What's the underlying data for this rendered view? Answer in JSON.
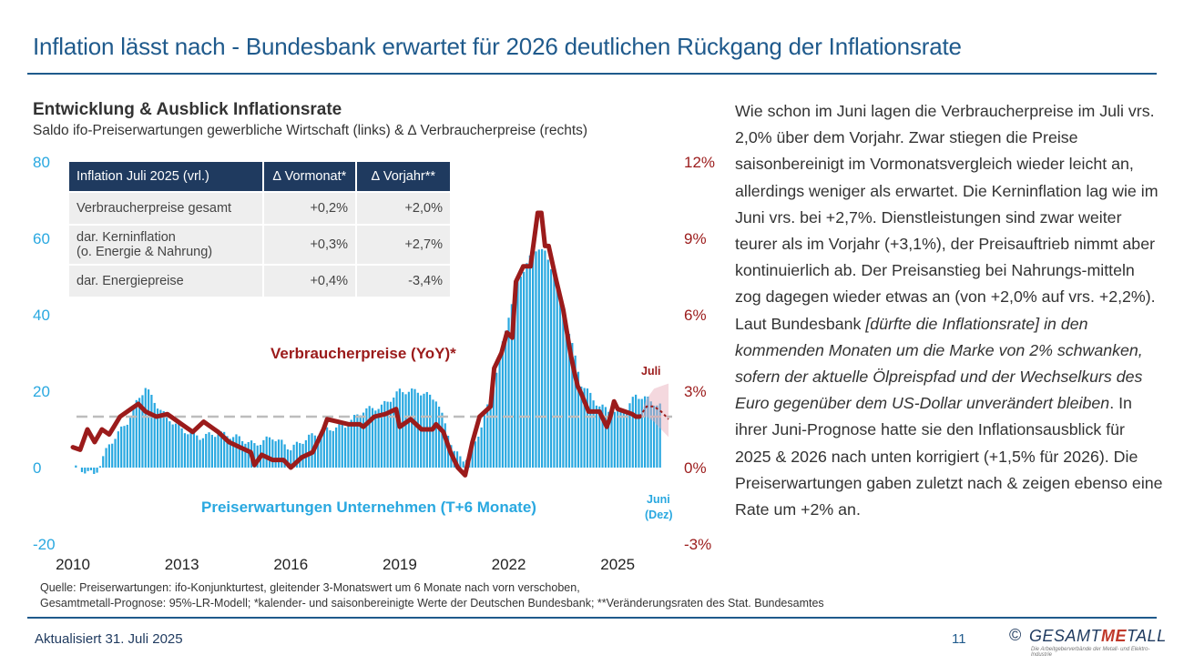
{
  "header": {
    "title": "Inflation lässt nach - Bundesbank erwartet für 2026 deutlichen Rückgang der Inflationsrate"
  },
  "chart_heading": {
    "title": "Entwicklung & Ausblick Inflationsrate",
    "subtitle": "Saldo ifo-Preiserwartungen gewerbliche Wirtschaft (links) & ∆ Verbraucherpreise (rechts)"
  },
  "table": {
    "headers": [
      "Inflation Juli 2025 (vrl.)",
      "∆ Vormonat*",
      "∆ Vorjahr**"
    ],
    "rows": [
      {
        "label": "Verbraucherpreise gesamt",
        "label2": "",
        "mom": "+0,2%",
        "yoy": "+2,0%"
      },
      {
        "label": "dar. Kerninflation",
        "label2": "(o. Energie & Nahrung)",
        "mom": "+0,3%",
        "yoy": "+2,7%"
      },
      {
        "label": "dar. Energiepreise",
        "label2": "",
        "mom": "+0,4%",
        "yoy": "-3,4%"
      }
    ]
  },
  "chart_data": {
    "type": "bar+line",
    "x_ticks": [
      "2010",
      "2013",
      "2016",
      "2019",
      "2022",
      "2025"
    ],
    "x_range": [
      2010,
      2026.5
    ],
    "y_left": {
      "label": "Saldo ifo-Preiserwartungen",
      "range": [
        -20,
        80
      ],
      "ticks": [
        "-20",
        "0",
        "20",
        "40",
        "60",
        "80"
      ]
    },
    "y_right": {
      "label": "∆ Verbraucherpreise",
      "range": [
        -3,
        12
      ],
      "ticks": [
        "-3%",
        "0%",
        "3%",
        "6%",
        "9%",
        "12%"
      ]
    },
    "reference_line": {
      "axis": "right",
      "value": 2.0,
      "style": "dashed"
    },
    "annotations": {
      "cpi_label": "Verbraucherpreise (YoY)*",
      "pe_label": "Preiserwartungen Unternehmen (T+6 Monate)",
      "cpi_end": "Juli",
      "pe_end_1": "Juni",
      "pe_end_2": "(Dez)"
    },
    "series": [
      {
        "name": "Preiserwartungen Unternehmen (T+6 Monate)",
        "axis": "left",
        "kind": "bar",
        "color": "#29a8e0",
        "points": [
          [
            2010.0,
            0
          ],
          [
            2010.4,
            -1
          ],
          [
            2010.6,
            -2
          ],
          [
            2011.0,
            6
          ],
          [
            2011.5,
            12
          ],
          [
            2011.8,
            18
          ],
          [
            2012.0,
            21
          ],
          [
            2012.2,
            18
          ],
          [
            2012.5,
            14
          ],
          [
            2013.0,
            10
          ],
          [
            2013.5,
            8
          ],
          [
            2014.0,
            9
          ],
          [
            2014.5,
            8
          ],
          [
            2015.0,
            6
          ],
          [
            2015.5,
            8
          ],
          [
            2016.0,
            5
          ],
          [
            2016.5,
            8
          ],
          [
            2017.0,
            10
          ],
          [
            2017.5,
            11
          ],
          [
            2018.0,
            15
          ],
          [
            2018.5,
            16
          ],
          [
            2019.0,
            20
          ],
          [
            2019.5,
            20
          ],
          [
            2020.0,
            18
          ],
          [
            2020.3,
            10
          ],
          [
            2020.5,
            4
          ],
          [
            2020.8,
            2
          ],
          [
            2021.0,
            5
          ],
          [
            2021.3,
            12
          ],
          [
            2021.6,
            22
          ],
          [
            2022.0,
            40
          ],
          [
            2022.3,
            50
          ],
          [
            2022.6,
            55
          ],
          [
            2022.8,
            58
          ],
          [
            2023.0,
            56
          ],
          [
            2023.3,
            50
          ],
          [
            2023.6,
            38
          ],
          [
            2024.0,
            22
          ],
          [
            2024.5,
            16
          ],
          [
            2024.8,
            15
          ],
          [
            2025.0,
            14
          ],
          [
            2025.3,
            16
          ],
          [
            2025.5,
            19
          ],
          [
            2025.8,
            18
          ],
          [
            2026.0,
            17
          ],
          [
            2026.2,
            16
          ]
        ]
      },
      {
        "name": "Verbraucherpreise (YoY)*",
        "axis": "right",
        "kind": "line",
        "color": "#9b1b1b",
        "points": [
          [
            2010.0,
            0.8
          ],
          [
            2010.2,
            0.7
          ],
          [
            2010.4,
            1.5
          ],
          [
            2010.6,
            1.0
          ],
          [
            2010.8,
            1.5
          ],
          [
            2011.0,
            1.3
          ],
          [
            2011.3,
            2.0
          ],
          [
            2011.6,
            2.3
          ],
          [
            2011.8,
            2.5
          ],
          [
            2012.0,
            2.2
          ],
          [
            2012.3,
            2.0
          ],
          [
            2012.6,
            2.1
          ],
          [
            2012.9,
            1.8
          ],
          [
            2013.0,
            1.7
          ],
          [
            2013.3,
            1.4
          ],
          [
            2013.6,
            1.8
          ],
          [
            2013.9,
            1.5
          ],
          [
            2014.0,
            1.4
          ],
          [
            2014.3,
            1.0
          ],
          [
            2014.6,
            0.8
          ],
          [
            2014.9,
            0.6
          ],
          [
            2015.0,
            0.1
          ],
          [
            2015.2,
            0.5
          ],
          [
            2015.5,
            0.3
          ],
          [
            2015.8,
            0.3
          ],
          [
            2016.0,
            0.0
          ],
          [
            2016.3,
            0.4
          ],
          [
            2016.6,
            0.6
          ],
          [
            2016.9,
            1.5
          ],
          [
            2017.0,
            1.9
          ],
          [
            2017.3,
            1.8
          ],
          [
            2017.6,
            1.7
          ],
          [
            2017.9,
            1.7
          ],
          [
            2018.0,
            1.6
          ],
          [
            2018.3,
            2.0
          ],
          [
            2018.6,
            2.1
          ],
          [
            2018.9,
            2.3
          ],
          [
            2019.0,
            1.6
          ],
          [
            2019.3,
            1.9
          ],
          [
            2019.6,
            1.5
          ],
          [
            2019.9,
            1.5
          ],
          [
            2020.0,
            1.7
          ],
          [
            2020.2,
            1.4
          ],
          [
            2020.4,
            0.6
          ],
          [
            2020.6,
            0.0
          ],
          [
            2020.8,
            -0.3
          ],
          [
            2021.0,
            1.0
          ],
          [
            2021.2,
            2.0
          ],
          [
            2021.5,
            2.4
          ],
          [
            2021.6,
            3.9
          ],
          [
            2021.8,
            4.5
          ],
          [
            2021.95,
            5.3
          ],
          [
            2022.1,
            5.1
          ],
          [
            2022.2,
            7.3
          ],
          [
            2022.4,
            7.9
          ],
          [
            2022.6,
            7.9
          ],
          [
            2022.8,
            10.0
          ],
          [
            2022.9,
            10.0
          ],
          [
            2023.0,
            8.7
          ],
          [
            2023.1,
            8.7
          ],
          [
            2023.3,
            7.4
          ],
          [
            2023.5,
            6.2
          ],
          [
            2023.7,
            4.5
          ],
          [
            2023.8,
            3.8
          ],
          [
            2023.9,
            3.2
          ],
          [
            2024.0,
            2.9
          ],
          [
            2024.2,
            2.2
          ],
          [
            2024.5,
            2.2
          ],
          [
            2024.7,
            1.6
          ],
          [
            2024.8,
            2.0
          ],
          [
            2024.9,
            2.6
          ],
          [
            2025.0,
            2.3
          ],
          [
            2025.2,
            2.2
          ],
          [
            2025.4,
            2.1
          ],
          [
            2025.5,
            2.0
          ],
          [
            2025.6,
            2.0
          ]
        ]
      },
      {
        "name": "Gesamtmetall-Prognose (95%-LR)",
        "axis": "right",
        "kind": "forecast",
        "color": "#9b1b1b",
        "points": [
          [
            2025.6,
            2.0
          ],
          [
            2025.8,
            2.4
          ],
          [
            2026.0,
            2.4
          ],
          [
            2026.2,
            2.2
          ],
          [
            2026.4,
            1.9
          ]
        ],
        "upper": [
          2.0,
          2.7,
          3.1,
          3.2,
          3.3
        ],
        "lower": [
          2.0,
          2.0,
          1.8,
          1.5,
          1.2
        ]
      }
    ]
  },
  "body_text": {
    "p1": "Wie schon im Juni lagen die Verbraucherpreise im Juli vrs. 2,0% über dem Vorjahr. Zwar stiegen die Preise saisonbereinigt im Vormonatsvergleich wieder leicht an, allerdings weniger als erwartet. Die Kerninflation lag wie im Juni vrs. bei +2,7%. Dienstleistungen sind zwar weiter teurer als im Vorjahr (+3,1%), der Preisauftrieb nimmt aber kontinuierlich ab. Der Preisanstieg bei Nahrungs-mitteln zog dagegen wieder etwas an (von +2,0% auf vrs. +2,2%). Laut Bundesbank ",
    "p_italic": "[dürfte die Inflationsrate] in den kommenden Monaten um die Marke von 2% schwanken, sofern der aktuelle Ölpreispfad und der Wechselkurs des Euro gegenüber dem US-Dollar unverändert bleiben",
    "p2": ". In ihrer Juni-Prognose hatte sie den Inflationsausblick für 2025 & 2026 nach unten korrigiert (+1,5% für 2026). Die Preiserwartungen gaben zuletzt nach & zeigen ebenso eine Rate um +2% an."
  },
  "footer": {
    "source_line1": "Quelle: Preiserwartungen: ifo-Konjunkturtest, gleitender 3-Monatswert um 6 Monate nach vorn verschoben,",
    "source_line2": "Gesamtmetall-Prognose: 95%-LR-Modell; *kalender- und saisonbereinigte Werte der Deutschen Bundesbank; **Veränderungsraten des Stat. Bundesamtes",
    "updated": "Aktualisiert 31. Juli 2025",
    "page": "11",
    "logo_copy": "©",
    "logo_pre": "GESAMT",
    "logo_mid": "ME",
    "logo_post": "TALL",
    "logo_tag": "Die Arbeitgeberverbände der Metall- und Elektro-Industrie"
  },
  "colors": {
    "accent": "#1f5a8c",
    "bars": "#29a8e0",
    "line": "#9b1b1b",
    "left_axis": "#29a8e0",
    "right_axis": "#9b1b1b"
  }
}
